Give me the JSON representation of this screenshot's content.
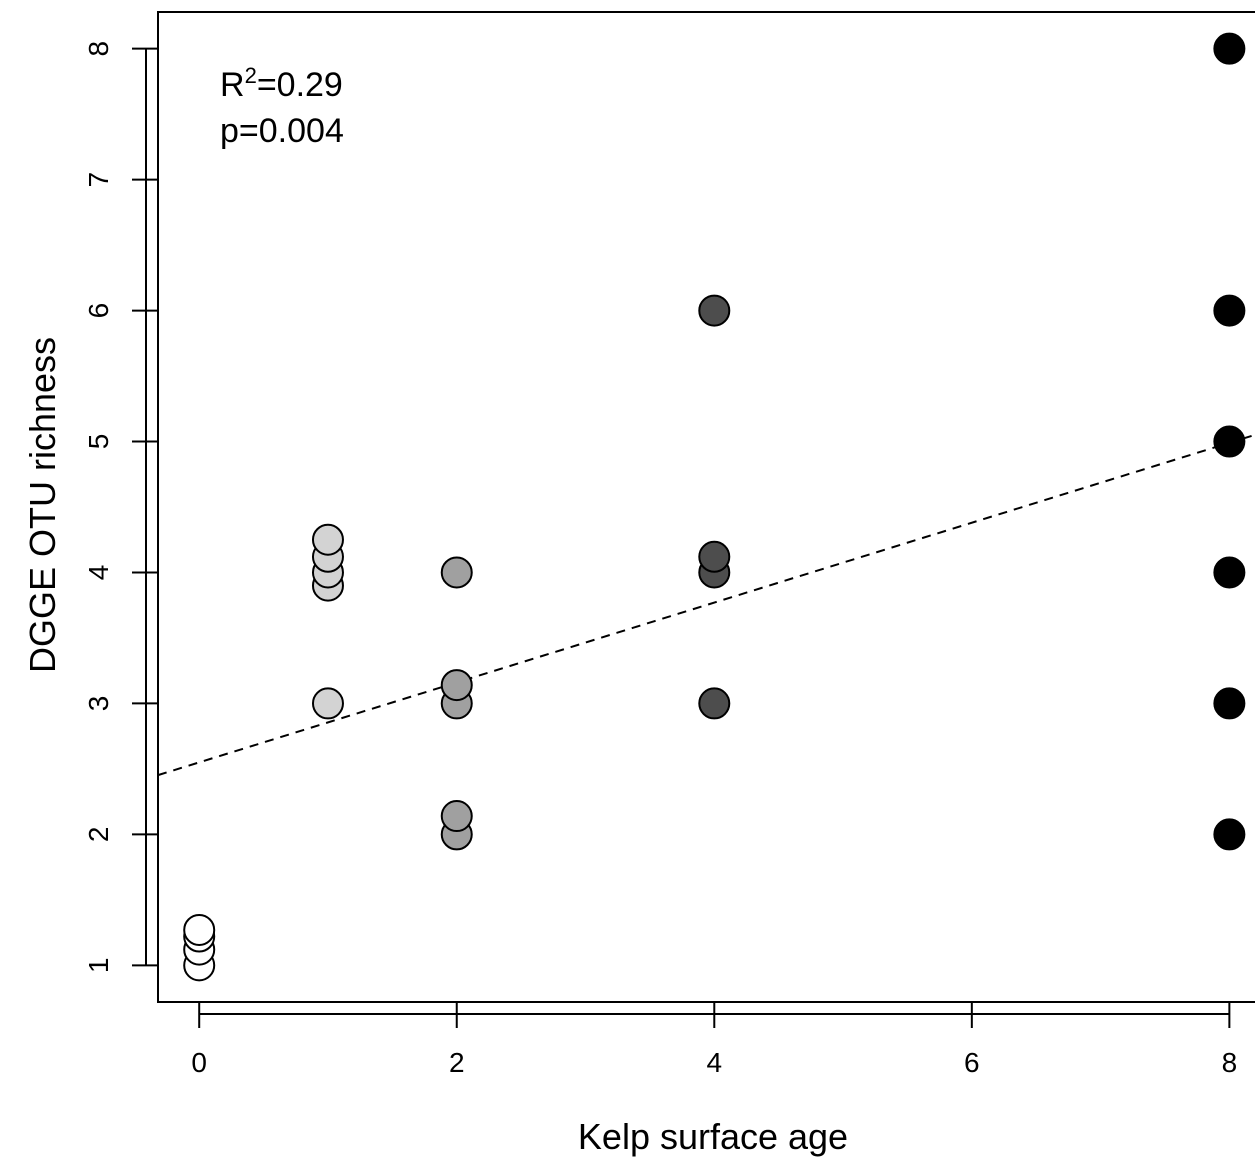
{
  "chart_data": {
    "type": "scatter",
    "xlabel": "Kelp surface age",
    "ylabel": "DGGE OTU richness",
    "xlim": [
      -0.32,
      8.3
    ],
    "ylim": [
      0.72,
      8.28
    ],
    "x_ticks": [
      "0",
      "2",
      "4",
      "6",
      "8"
    ],
    "y_ticks": [
      "1",
      "2",
      "3",
      "4",
      "5",
      "6",
      "7",
      "8"
    ],
    "annotation": {
      "r2_prefix": "R",
      "r2_sup": "2",
      "r2_value": "=0.29",
      "p_text": "p=0.004"
    },
    "regression": {
      "intercept": 2.55,
      "slope": 0.305,
      "style": "dashed"
    },
    "grid": false,
    "points": [
      {
        "x": 0,
        "y": 1.0,
        "fill": "#ffffff"
      },
      {
        "x": 0,
        "y": 1.12,
        "fill": "#ffffff"
      },
      {
        "x": 0,
        "y": 1.22,
        "fill": "#ffffff"
      },
      {
        "x": 0,
        "y": 1.27,
        "fill": "#ffffff"
      },
      {
        "x": 1,
        "y": 3.0,
        "fill": "#d3d3d3"
      },
      {
        "x": 1,
        "y": 3.9,
        "fill": "#d3d3d3"
      },
      {
        "x": 1,
        "y": 4.0,
        "fill": "#d3d3d3"
      },
      {
        "x": 1,
        "y": 4.12,
        "fill": "#d3d3d3"
      },
      {
        "x": 1,
        "y": 4.25,
        "fill": "#d3d3d3"
      },
      {
        "x": 2,
        "y": 2.0,
        "fill": "#a0a0a0"
      },
      {
        "x": 2,
        "y": 2.14,
        "fill": "#a0a0a0"
      },
      {
        "x": 2,
        "y": 3.0,
        "fill": "#a0a0a0"
      },
      {
        "x": 2,
        "y": 3.14,
        "fill": "#a0a0a0"
      },
      {
        "x": 2,
        "y": 4.0,
        "fill": "#a0a0a0"
      },
      {
        "x": 4,
        "y": 3.0,
        "fill": "#4d4d4d"
      },
      {
        "x": 4,
        "y": 4.0,
        "fill": "#4d4d4d"
      },
      {
        "x": 4,
        "y": 4.12,
        "fill": "#4d4d4d"
      },
      {
        "x": 4,
        "y": 6.0,
        "fill": "#4d4d4d"
      },
      {
        "x": 8,
        "y": 2.0,
        "fill": "#000000"
      },
      {
        "x": 8,
        "y": 3.0,
        "fill": "#000000"
      },
      {
        "x": 8,
        "y": 4.0,
        "fill": "#000000"
      },
      {
        "x": 8,
        "y": 5.0,
        "fill": "#000000"
      },
      {
        "x": 8,
        "y": 6.0,
        "fill": "#000000"
      },
      {
        "x": 8,
        "y": 8.0,
        "fill": "#000000"
      }
    ]
  }
}
